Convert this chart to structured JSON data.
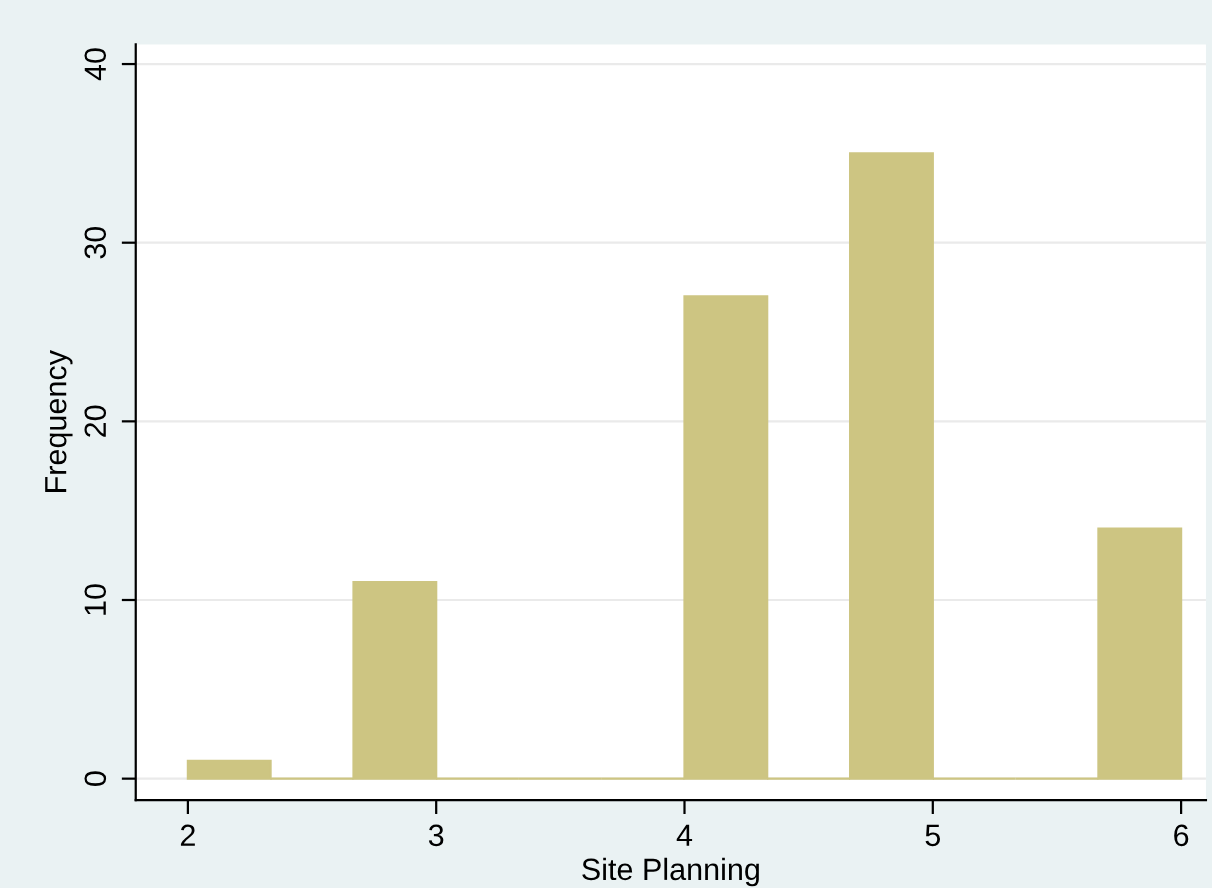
{
  "chart_data": {
    "type": "histogram",
    "xlabel": "Site Planning",
    "ylabel": "Frequency",
    "bins": [
      2,
      2.333,
      2.667,
      3,
      3.333,
      3.667,
      4,
      4.333,
      4.667,
      5,
      5.333,
      5.667,
      6
    ],
    "values": [
      1,
      0,
      11,
      0,
      0,
      0,
      27,
      0,
      35,
      0,
      0,
      14
    ],
    "color": "#cdc582",
    "xlim": [
      1.79,
      6.1
    ],
    "xticks": [
      2,
      3,
      4,
      5,
      6
    ],
    "ylim": [
      -1.2,
      41.1
    ],
    "yticks": [
      0,
      10,
      20,
      30,
      40
    ],
    "grid": "y",
    "legend": false
  }
}
